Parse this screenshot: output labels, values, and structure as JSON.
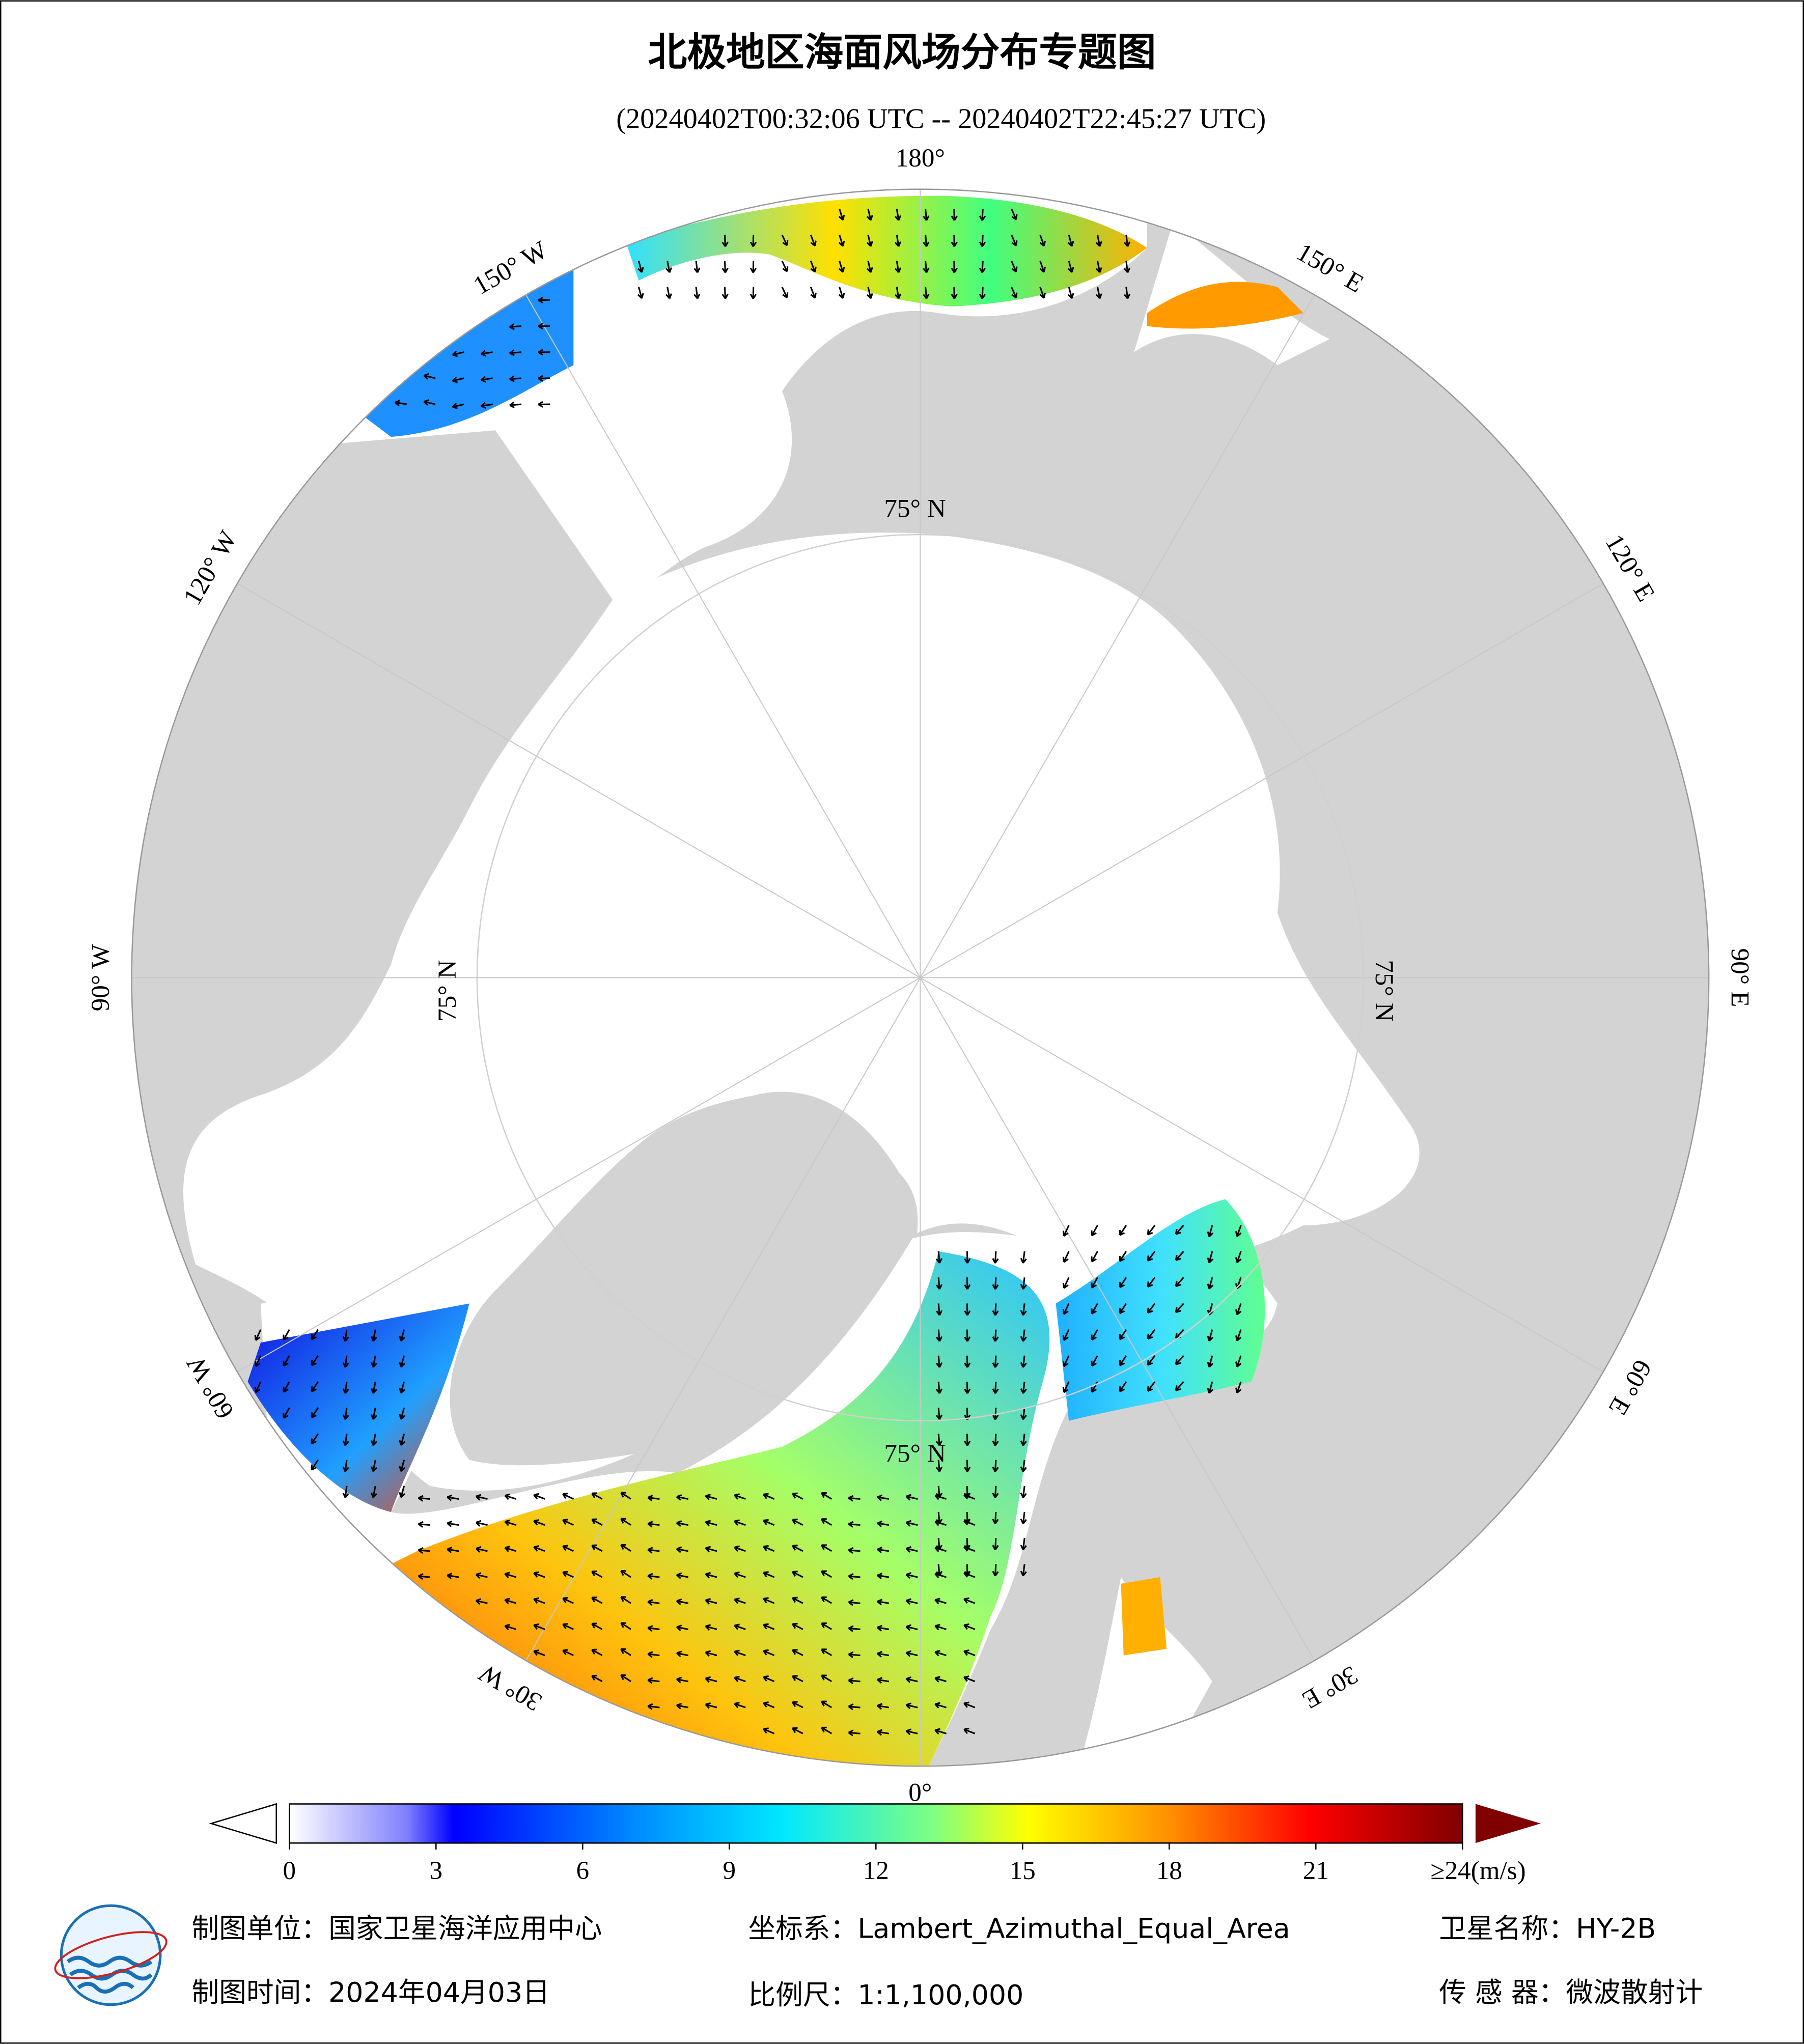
{
  "header": {
    "title": "北极地区海面风场分布专题图",
    "subtitle": "(20240402T00:32:06 UTC -- 20240402T22:45:27 UTC)"
  },
  "map": {
    "lon_labels": [
      {
        "lon": 180,
        "label": "180°"
      },
      {
        "lon": 150,
        "label": "150° E"
      },
      {
        "lon": 120,
        "label": "120° E"
      },
      {
        "lon": 90,
        "label": "90° E"
      },
      {
        "lon": 60,
        "label": "60° E"
      },
      {
        "lon": 30,
        "label": "30° E"
      },
      {
        "lon": 0,
        "label": "0°"
      },
      {
        "lon": -30,
        "label": "30° W"
      },
      {
        "lon": -60,
        "label": "60° W"
      },
      {
        "lon": -90,
        "label": "90° W"
      },
      {
        "lon": -120,
        "label": "120° W"
      },
      {
        "lon": -150,
        "label": "150° W"
      }
    ],
    "lat_label": "75° N"
  },
  "colorbar": {
    "lim": [
      0,
      24
    ],
    "ticks": [
      0,
      3,
      6,
      9,
      12,
      15,
      18,
      21,
      {
        "value": 24,
        "label": "≥24(m/s)"
      }
    ]
  },
  "footer": {
    "unit": "制图单位：国家卫星海洋应用中心",
    "crs": "坐标系：Lambert_Azimuthal_Equal_Area",
    "satellite": "卫星名称：HY-2B",
    "date": "制图时间：2024年04月03日",
    "scale": "比例尺：1:1,100,000",
    "sensor": "传 感 器：微波散射计"
  }
}
